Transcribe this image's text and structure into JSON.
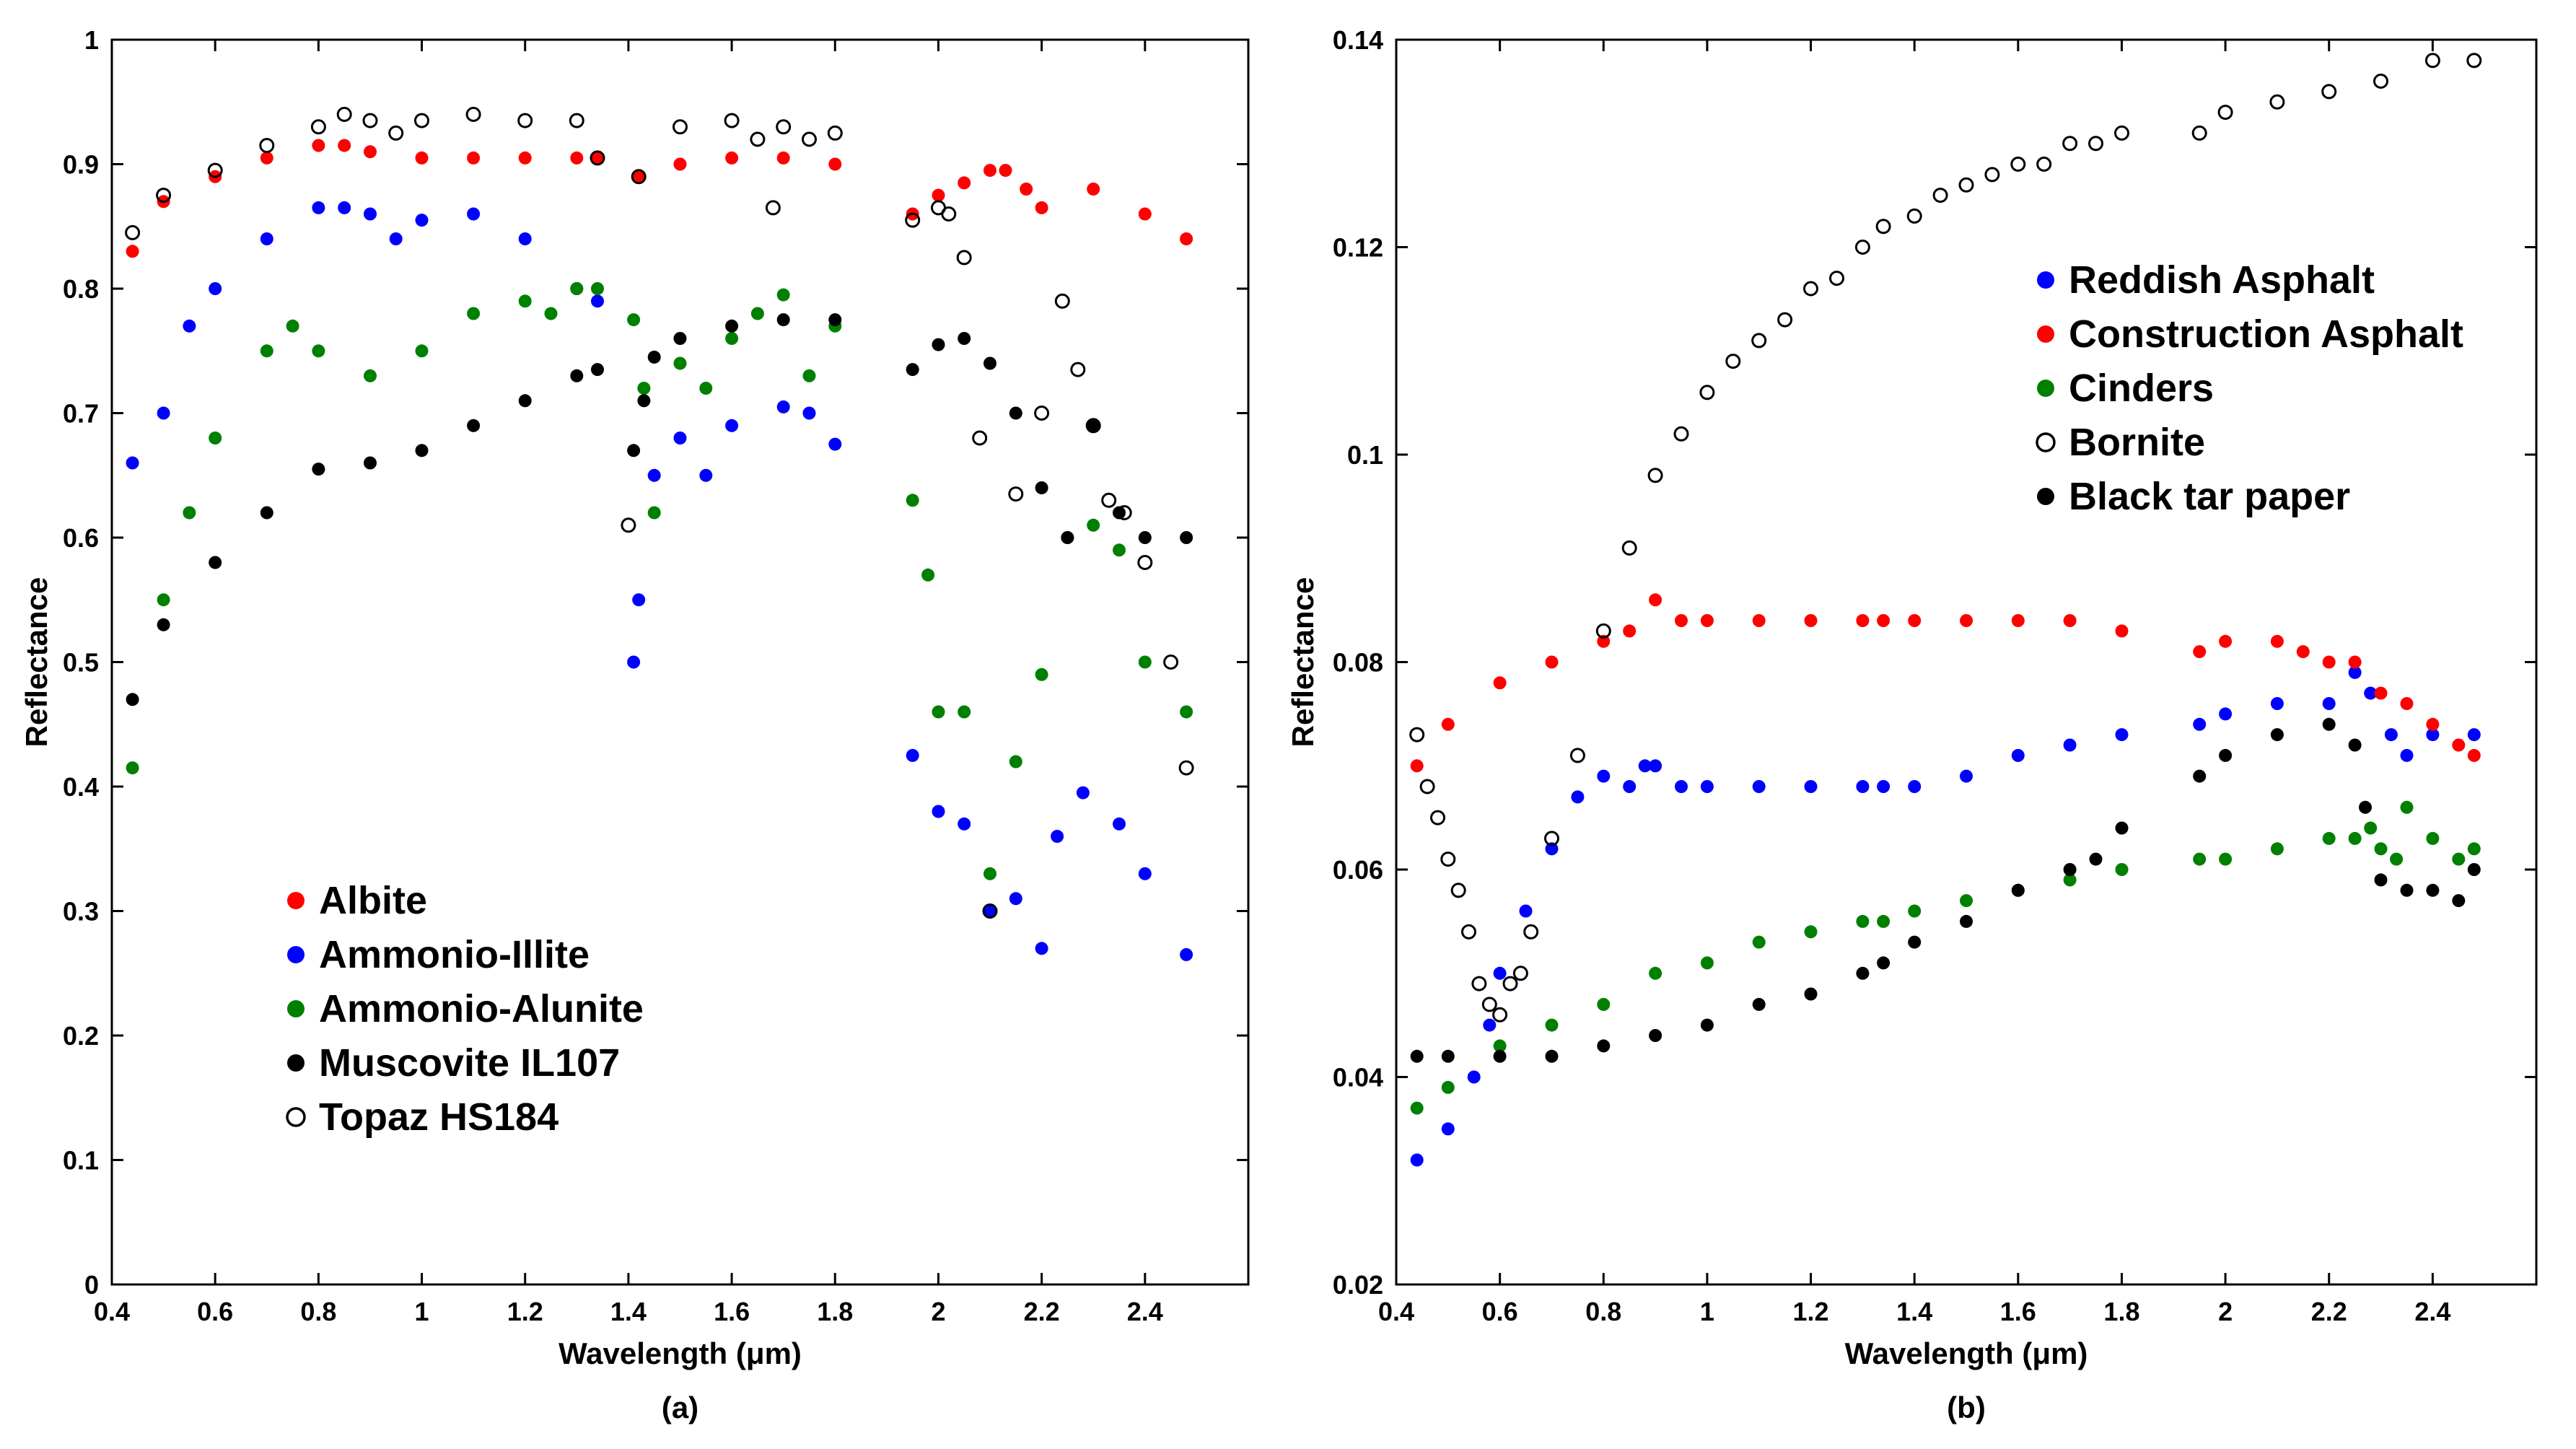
{
  "chart_data": [
    {
      "type": "scatter",
      "panel_label": "(a)",
      "xlabel": "Wavelength (μm)",
      "ylabel": "Reflectance",
      "xlim": [
        0.4,
        2.6
      ],
      "ylim": [
        0,
        1
      ],
      "xticks": [
        0.4,
        0.6,
        0.8,
        1,
        1.2,
        1.4,
        1.6,
        1.8,
        2,
        2.2,
        2.4
      ],
      "xtick_labels": [
        "0.4",
        "0.6",
        "0.8",
        "1",
        "1.2",
        "1.4",
        "1.6",
        "1.8",
        "2",
        "2.2",
        "2.4"
      ],
      "yticks": [
        0,
        0.1,
        0.2,
        0.3,
        0.4,
        0.5,
        0.6,
        0.7,
        0.8,
        0.9,
        1
      ],
      "ytick_labels": [
        "0",
        "0.1",
        "0.2",
        "0.3",
        "0.4",
        "0.5",
        "0.6",
        "0.7",
        "0.8",
        "0.9",
        "1"
      ],
      "legend_position": "bottom-left",
      "series": [
        {
          "name": "Albite",
          "color": "#ff0000",
          "marker": "filled",
          "x": [
            0.44,
            0.5,
            0.6,
            0.7,
            0.8,
            0.85,
            0.9,
            1.0,
            1.1,
            1.2,
            1.3,
            1.34,
            1.42,
            1.5,
            1.6,
            1.7,
            1.8,
            1.95,
            2.0,
            2.05,
            2.1,
            2.13,
            2.17,
            2.2,
            2.3,
            2.4,
            2.48
          ],
          "y": [
            0.83,
            0.87,
            0.89,
            0.905,
            0.915,
            0.915,
            0.91,
            0.905,
            0.905,
            0.905,
            0.905,
            0.905,
            0.89,
            0.9,
            0.905,
            0.905,
            0.9,
            0.86,
            0.875,
            0.885,
            0.895,
            0.895,
            0.88,
            0.865,
            0.88,
            0.86,
            0.84
          ]
        },
        {
          "name": "Ammonio-Illite",
          "color": "#0000ff",
          "marker": "filled",
          "x": [
            0.44,
            0.5,
            0.55,
            0.6,
            0.7,
            0.8,
            0.85,
            0.9,
            0.95,
            1.0,
            1.1,
            1.2,
            1.3,
            1.34,
            1.41,
            1.42,
            1.45,
            1.5,
            1.55,
            1.6,
            1.7,
            1.75,
            1.8,
            1.95,
            2.0,
            2.05,
            2.1,
            2.15,
            2.2,
            2.23,
            2.28,
            2.35,
            2.4,
            2.48
          ],
          "y": [
            0.66,
            0.7,
            0.77,
            0.8,
            0.84,
            0.865,
            0.865,
            0.86,
            0.84,
            0.855,
            0.86,
            0.84,
            0.8,
            0.79,
            0.5,
            0.55,
            0.65,
            0.68,
            0.65,
            0.69,
            0.705,
            0.7,
            0.675,
            0.425,
            0.38,
            0.37,
            0.3,
            0.31,
            0.27,
            0.36,
            0.395,
            0.37,
            0.33,
            0.265
          ]
        },
        {
          "name": "Ammonio-Alunite",
          "color": "#008000",
          "marker": "filled",
          "x": [
            0.44,
            0.5,
            0.55,
            0.6,
            0.7,
            0.75,
            0.8,
            0.9,
            1.0,
            1.1,
            1.2,
            1.25,
            1.3,
            1.34,
            1.41,
            1.43,
            1.45,
            1.5,
            1.55,
            1.6,
            1.65,
            1.7,
            1.75,
            1.8,
            1.95,
            1.98,
            2.0,
            2.05,
            2.1,
            2.15,
            2.2,
            2.25,
            2.3,
            2.35,
            2.4,
            2.48
          ],
          "y": [
            0.415,
            0.55,
            0.62,
            0.68,
            0.75,
            0.77,
            0.75,
            0.73,
            0.75,
            0.78,
            0.79,
            0.78,
            0.8,
            0.8,
            0.775,
            0.72,
            0.62,
            0.74,
            0.72,
            0.76,
            0.78,
            0.795,
            0.73,
            0.77,
            0.63,
            0.57,
            0.46,
            0.46,
            0.33,
            0.42,
            0.49,
            0.6,
            0.61,
            0.59,
            0.5,
            0.46
          ]
        },
        {
          "name": "Muscovite IL107",
          "color": "#000000",
          "marker": "filled",
          "x": [
            0.44,
            0.5,
            0.6,
            0.7,
            0.8,
            0.9,
            1.0,
            1.1,
            1.2,
            1.3,
            1.34,
            1.41,
            1.43,
            1.45,
            1.5,
            1.6,
            1.7,
            1.8,
            1.95,
            2.0,
            2.05,
            2.1,
            2.15,
            2.2,
            2.25,
            2.3,
            2.35,
            2.4,
            2.48
          ],
          "y": [
            0.47,
            0.53,
            0.58,
            0.62,
            0.655,
            0.66,
            0.67,
            0.69,
            0.71,
            0.73,
            0.735,
            0.67,
            0.71,
            0.745,
            0.76,
            0.77,
            0.775,
            0.775,
            0.735,
            0.755,
            0.76,
            0.74,
            0.7,
            0.64,
            0.6,
            0.69,
            0.62,
            0.6,
            0.6
          ]
        },
        {
          "name": "Topaz HS184",
          "color": "#000000",
          "marker": "open",
          "x": [
            0.44,
            0.5,
            0.6,
            0.7,
            0.8,
            0.85,
            0.9,
            0.95,
            1.0,
            1.1,
            1.2,
            1.3,
            1.34,
            1.4,
            1.42,
            1.5,
            1.6,
            1.65,
            1.68,
            1.7,
            1.75,
            1.8,
            1.95,
            2.0,
            2.02,
            2.05,
            2.08,
            2.1,
            2.15,
            2.2,
            2.24,
            2.27,
            2.3,
            2.33,
            2.36,
            2.4,
            2.45,
            2.48
          ],
          "y": [
            0.845,
            0.875,
            0.895,
            0.915,
            0.93,
            0.94,
            0.935,
            0.925,
            0.935,
            0.94,
            0.935,
            0.935,
            0.905,
            0.61,
            0.89,
            0.93,
            0.935,
            0.92,
            0.865,
            0.93,
            0.92,
            0.925,
            0.855,
            0.865,
            0.86,
            0.825,
            0.68,
            0.3,
            0.635,
            0.7,
            0.79,
            0.735,
            0.69,
            0.63,
            0.62,
            0.58,
            0.5,
            0.415
          ]
        }
      ]
    },
    {
      "type": "scatter",
      "panel_label": "(b)",
      "xlabel": "Wavelength (μm)",
      "ylabel": "Reflectance",
      "xlim": [
        0.4,
        2.6
      ],
      "ylim": [
        0.02,
        0.14
      ],
      "xticks": [
        0.4,
        0.6,
        0.8,
        1,
        1.2,
        1.4,
        1.6,
        1.8,
        2,
        2.2,
        2.4
      ],
      "xtick_labels": [
        "0.4",
        "0.6",
        "0.8",
        "1",
        "1.2",
        "1.4",
        "1.6",
        "1.8",
        "2",
        "2.2",
        "2.4"
      ],
      "yticks": [
        0.02,
        0.04,
        0.06,
        0.08,
        0.1,
        0.12,
        0.14
      ],
      "ytick_labels": [
        "0.02",
        "0.04",
        "0.06",
        "0.08",
        "0.1",
        "0.12",
        "0.14"
      ],
      "legend_position": "top-right",
      "series": [
        {
          "name": "Reddish Asphalt",
          "color": "#0000ff",
          "marker": "filled",
          "x": [
            0.44,
            0.5,
            0.55,
            0.58,
            0.6,
            0.65,
            0.7,
            0.75,
            0.8,
            0.85,
            0.88,
            0.9,
            0.95,
            1.0,
            1.1,
            1.2,
            1.3,
            1.34,
            1.4,
            1.5,
            1.6,
            1.7,
            1.8,
            1.95,
            2.0,
            2.1,
            2.2,
            2.25,
            2.28,
            2.32,
            2.35,
            2.4,
            2.48
          ],
          "y": [
            0.032,
            0.035,
            0.04,
            0.045,
            0.05,
            0.056,
            0.062,
            0.067,
            0.069,
            0.068,
            0.07,
            0.07,
            0.068,
            0.068,
            0.068,
            0.068,
            0.068,
            0.068,
            0.068,
            0.069,
            0.071,
            0.072,
            0.073,
            0.074,
            0.075,
            0.076,
            0.076,
            0.079,
            0.077,
            0.073,
            0.071,
            0.073,
            0.073
          ]
        },
        {
          "name": "Construction Asphalt",
          "color": "#ff0000",
          "marker": "filled",
          "x": [
            0.44,
            0.5,
            0.6,
            0.7,
            0.8,
            0.85,
            0.9,
            0.95,
            1.0,
            1.1,
            1.2,
            1.3,
            1.34,
            1.4,
            1.5,
            1.6,
            1.7,
            1.8,
            1.95,
            2.0,
            2.1,
            2.15,
            2.2,
            2.25,
            2.3,
            2.35,
            2.4,
            2.45,
            2.48
          ],
          "y": [
            0.07,
            0.074,
            0.078,
            0.08,
            0.082,
            0.083,
            0.086,
            0.084,
            0.084,
            0.084,
            0.084,
            0.084,
            0.084,
            0.084,
            0.084,
            0.084,
            0.084,
            0.083,
            0.081,
            0.082,
            0.082,
            0.081,
            0.08,
            0.08,
            0.077,
            0.076,
            0.074,
            0.072,
            0.071
          ]
        },
        {
          "name": "Cinders",
          "color": "#008000",
          "marker": "filled",
          "x": [
            0.44,
            0.5,
            0.6,
            0.7,
            0.8,
            0.9,
            1.0,
            1.1,
            1.2,
            1.3,
            1.34,
            1.4,
            1.5,
            1.6,
            1.7,
            1.8,
            1.95,
            2.0,
            2.1,
            2.2,
            2.25,
            2.28,
            2.3,
            2.33,
            2.35,
            2.4,
            2.45,
            2.48
          ],
          "y": [
            0.037,
            0.039,
            0.043,
            0.045,
            0.047,
            0.05,
            0.051,
            0.053,
            0.054,
            0.055,
            0.055,
            0.056,
            0.057,
            0.058,
            0.059,
            0.06,
            0.061,
            0.061,
            0.062,
            0.063,
            0.063,
            0.064,
            0.062,
            0.061,
            0.066,
            0.063,
            0.061,
            0.062
          ]
        },
        {
          "name": "Bornite",
          "color": "#000000",
          "marker": "open",
          "x": [
            0.44,
            0.46,
            0.48,
            0.5,
            0.52,
            0.54,
            0.56,
            0.58,
            0.6,
            0.62,
            0.64,
            0.66,
            0.7,
            0.75,
            0.8,
            0.85,
            0.9,
            0.95,
            1.0,
            1.05,
            1.1,
            1.15,
            1.2,
            1.25,
            1.3,
            1.34,
            1.4,
            1.45,
            1.5,
            1.55,
            1.6,
            1.65,
            1.7,
            1.75,
            1.8,
            1.95,
            2.0,
            2.1,
            2.2,
            2.3,
            2.4,
            2.48
          ],
          "y": [
            0.073,
            0.068,
            0.065,
            0.061,
            0.058,
            0.054,
            0.049,
            0.047,
            0.046,
            0.049,
            0.05,
            0.054,
            0.063,
            0.071,
            0.083,
            0.091,
            0.098,
            0.102,
            0.106,
            0.109,
            0.111,
            0.113,
            0.116,
            0.117,
            0.12,
            0.122,
            0.123,
            0.125,
            0.126,
            0.127,
            0.128,
            0.128,
            0.13,
            0.13,
            0.131,
            0.131,
            0.133,
            0.134,
            0.135,
            0.136,
            0.138,
            0.138
          ]
        },
        {
          "name": "Black tar paper",
          "color": "#000000",
          "marker": "filled",
          "x": [
            0.44,
            0.5,
            0.6,
            0.7,
            0.8,
            0.9,
            1.0,
            1.1,
            1.2,
            1.3,
            1.34,
            1.4,
            1.5,
            1.6,
            1.7,
            1.75,
            1.8,
            1.95,
            2.0,
            2.1,
            2.2,
            2.25,
            2.27,
            2.3,
            2.35,
            2.4,
            2.45,
            2.48
          ],
          "y": [
            0.042,
            0.042,
            0.042,
            0.042,
            0.043,
            0.044,
            0.045,
            0.047,
            0.048,
            0.05,
            0.051,
            0.053,
            0.055,
            0.058,
            0.06,
            0.061,
            0.064,
            0.069,
            0.071,
            0.073,
            0.074,
            0.072,
            0.066,
            0.059,
            0.058,
            0.058,
            0.057,
            0.06
          ]
        }
      ]
    }
  ]
}
